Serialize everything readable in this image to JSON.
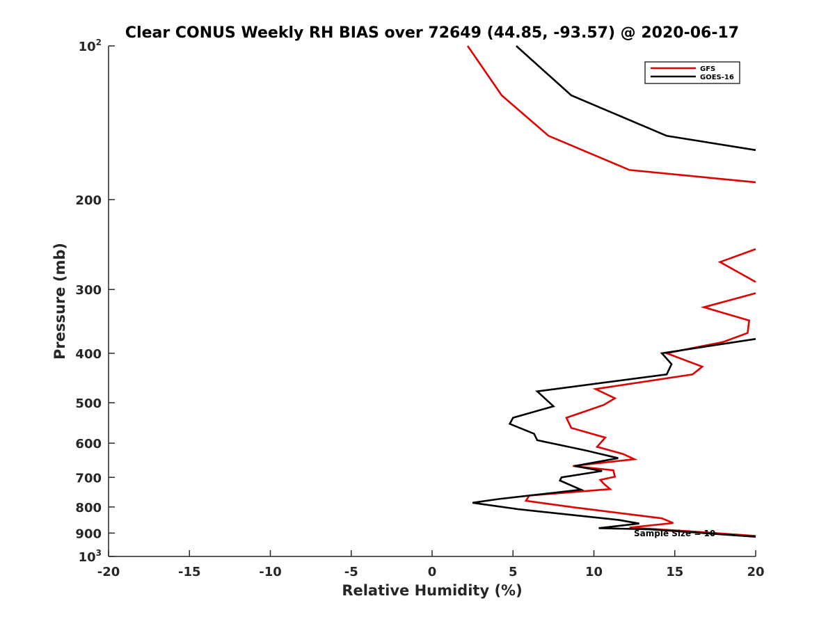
{
  "chart_data": {
    "type": "line",
    "title": "Clear CONUS Weekly RH BIAS over 72649 (44.85, -93.57) @ 2020-06-17",
    "xlabel": "Relative Humidity (%)",
    "ylabel": "Pressure (mb)",
    "xlim": [
      -20,
      20
    ],
    "ylim": [
      100,
      1000
    ],
    "yscale": "log",
    "y_reversed": true,
    "x_ticks": [
      "-20",
      "-15",
      "-10",
      "-5",
      "0",
      "5",
      "10",
      "15",
      "20"
    ],
    "y_ticks": [
      {
        "base": "10",
        "exp": "2"
      },
      {
        "text": "200"
      },
      {
        "text": "300"
      },
      {
        "text": "400"
      },
      {
        "text": "500"
      },
      {
        "text": "600"
      },
      {
        "text": "700"
      },
      {
        "text": "800"
      },
      {
        "text": "900"
      },
      {
        "base": "10",
        "exp": "3"
      }
    ],
    "legend_position": "top-right",
    "annotation": "Sample Size = 10",
    "series": [
      {
        "name": "GFS",
        "color": "#e00000",
        "points": [
          [
            2.2,
            100
          ],
          [
            4.3,
            125
          ],
          [
            7.2,
            150
          ],
          [
            12.2,
            175
          ],
          [
            20,
            185
          ],
          null,
          [
            20,
            250
          ],
          [
            17.8,
            265
          ],
          [
            20,
            290
          ],
          null,
          [
            20,
            305
          ],
          [
            16.8,
            325
          ],
          [
            19.6,
            345
          ],
          [
            19.5,
            365
          ],
          [
            18,
            380
          ],
          [
            14.5,
            400
          ],
          [
            16.7,
            425
          ],
          [
            16.1,
            440
          ],
          [
            10.1,
            470
          ],
          [
            11.3,
            490
          ],
          [
            10.6,
            505
          ],
          [
            8.3,
            535
          ],
          [
            8.6,
            560
          ],
          [
            10.7,
            585
          ],
          [
            10.2,
            610
          ],
          [
            11.8,
            630
          ],
          [
            12.5,
            645
          ],
          [
            8.7,
            665
          ],
          [
            11.2,
            678
          ],
          [
            11.3,
            698
          ],
          [
            10.4,
            708
          ],
          [
            10.6,
            720
          ],
          [
            11.0,
            738
          ],
          [
            6.0,
            760
          ],
          [
            5.8,
            778
          ],
          [
            8.6,
            800
          ],
          [
            14.2,
            842
          ],
          [
            14.9,
            860
          ],
          [
            12.2,
            878
          ],
          [
            16.0,
            893
          ],
          [
            20,
            912
          ]
        ]
      },
      {
        "name": "GOES-16",
        "color": "#000000",
        "points": [
          [
            5.2,
            100
          ],
          [
            8.6,
            125
          ],
          [
            14.5,
            150
          ],
          [
            20,
            160
          ],
          null,
          [
            20,
            375
          ],
          [
            14.2,
            400
          ],
          [
            14.8,
            420
          ],
          [
            14.5,
            440
          ],
          [
            6.5,
            475
          ],
          [
            7.5,
            508
          ],
          [
            5.0,
            535
          ],
          [
            4.8,
            550
          ],
          [
            6.3,
            575
          ],
          [
            6.5,
            592
          ],
          [
            9.5,
            620
          ],
          [
            11.5,
            642
          ],
          [
            8.8,
            665
          ],
          [
            10.5,
            680
          ],
          [
            8.0,
            700
          ],
          [
            7.9,
            710
          ],
          [
            9.2,
            740
          ],
          [
            4.1,
            772
          ],
          [
            2.5,
            785
          ],
          [
            5.3,
            808
          ],
          [
            11.5,
            848
          ],
          [
            12.8,
            862
          ],
          [
            10.3,
            880
          ],
          [
            13.5,
            885
          ],
          [
            20,
            915
          ]
        ]
      }
    ]
  }
}
